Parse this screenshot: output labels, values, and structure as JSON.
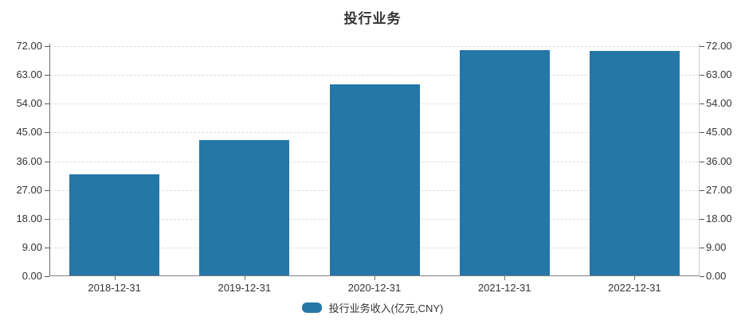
{
  "chart_data": {
    "type": "bar",
    "title": "投行业务",
    "categories": [
      "2018-12-31",
      "2019-12-31",
      "2020-12-31",
      "2021-12-31",
      "2022-12-31"
    ],
    "series": [
      {
        "name": "投行业务收入(亿元,CNY)",
        "values": [
          31.7,
          42.4,
          59.7,
          70.6,
          70.3
        ]
      }
    ],
    "ylim": [
      0,
      72
    ],
    "ytick_step": 9,
    "ytick_labels": [
      "0.00",
      "9.00",
      "18.00",
      "27.00",
      "36.00",
      "45.00",
      "54.00",
      "63.00",
      "72.00"
    ],
    "y_axis_sides": "left-and-right-mirrored",
    "xlabel": "",
    "ylabel": "",
    "grid": "horizontal-dashed",
    "legend_position": "bottom-center",
    "bar_color": "#2477a7"
  },
  "colors": {
    "bar": "#2477a7",
    "axis_dark": "#6e6e6e",
    "axis_light": "#cccccc",
    "gridline": "#dddddd",
    "text": "#333333"
  }
}
